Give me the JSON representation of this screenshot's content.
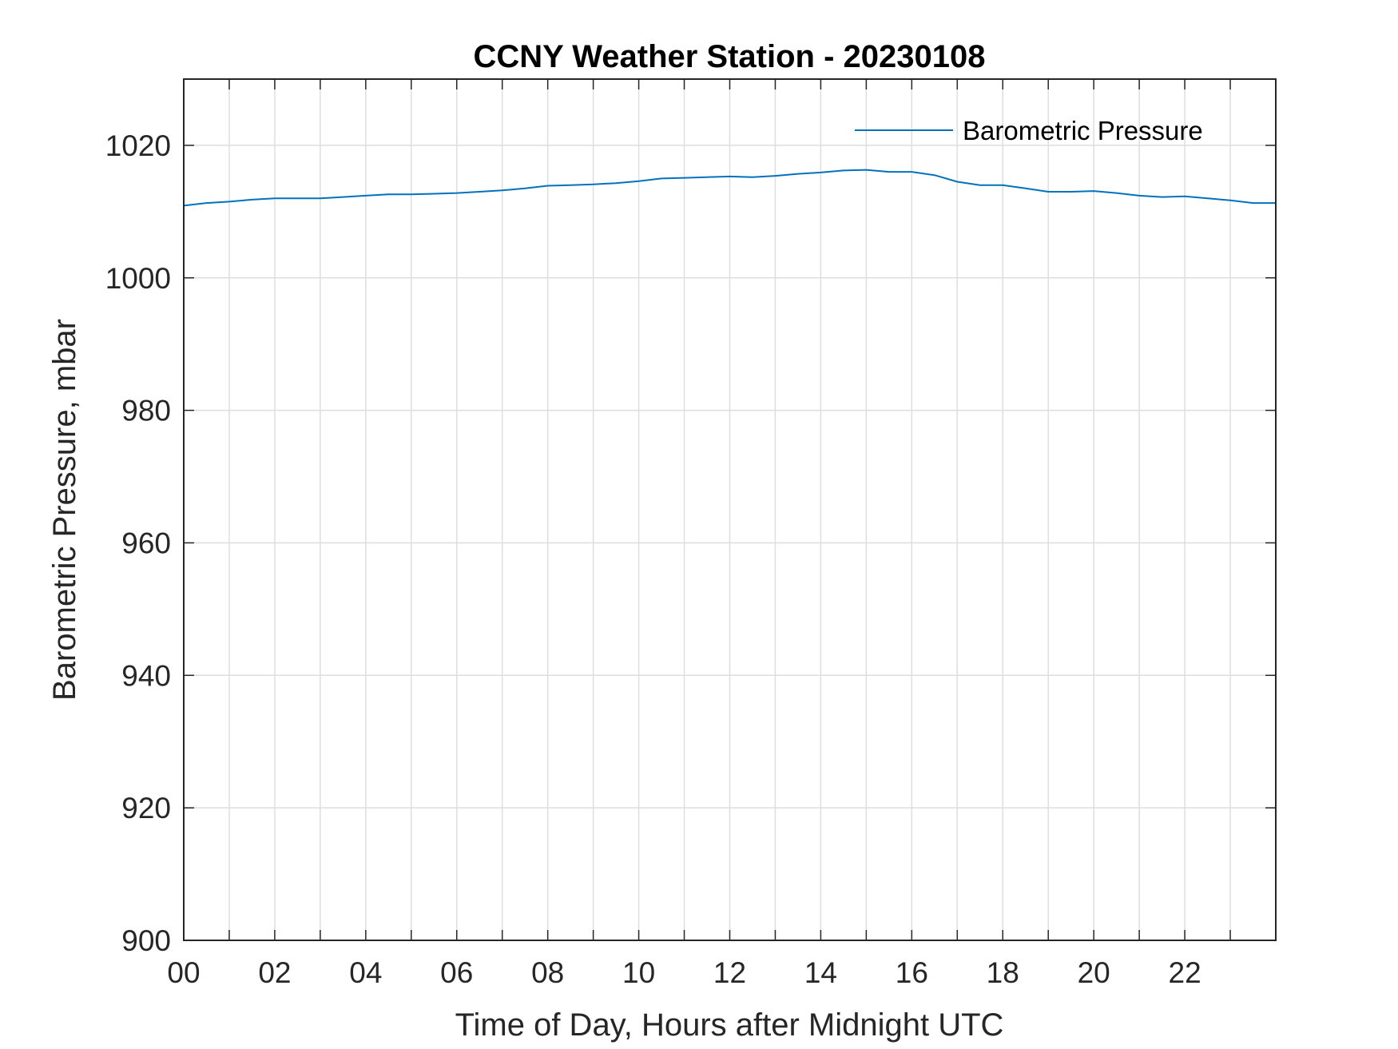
{
  "chart_data": {
    "type": "line",
    "title": "CCNY Weather Station - 20230108",
    "xlabel": "Time of Day, Hours after Midnight UTC",
    "ylabel": "Barometric Pressure, mbar",
    "xlim": [
      0,
      24
    ],
    "ylim": [
      900,
      1030
    ],
    "x_ticks": [
      0,
      2,
      4,
      6,
      8,
      10,
      12,
      14,
      16,
      18,
      20,
      22
    ],
    "x_tick_labels": [
      "00",
      "02",
      "04",
      "06",
      "08",
      "10",
      "12",
      "14",
      "16",
      "18",
      "20",
      "22"
    ],
    "y_ticks": [
      900,
      920,
      940,
      960,
      980,
      1000,
      1020
    ],
    "y_tick_labels": [
      "900",
      "920",
      "940",
      "960",
      "980",
      "1000",
      "1020"
    ],
    "grid": true,
    "legend_position": "top-right",
    "series": [
      {
        "name": "Barometric Pressure",
        "color": "#0072BD",
        "x": [
          0,
          0.5,
          1,
          1.5,
          2,
          2.5,
          3,
          3.5,
          4,
          4.5,
          5,
          5.5,
          6,
          6.5,
          7,
          7.5,
          8,
          8.5,
          9,
          9.5,
          10,
          10.5,
          11,
          11.5,
          12,
          12.5,
          13,
          13.5,
          14,
          14.5,
          15,
          15.5,
          16,
          16.5,
          17,
          17.5,
          18,
          18.5,
          19,
          19.5,
          20,
          20.5,
          21,
          21.5,
          22,
          22.5,
          23,
          23.5,
          24
        ],
        "y": [
          1010.9,
          1011.3,
          1011.5,
          1011.8,
          1012.0,
          1012.0,
          1012.0,
          1012.2,
          1012.4,
          1012.6,
          1012.6,
          1012.7,
          1012.8,
          1013.0,
          1013.2,
          1013.5,
          1013.9,
          1014.0,
          1014.1,
          1014.3,
          1014.6,
          1015.0,
          1015.1,
          1015.2,
          1015.3,
          1015.2,
          1015.4,
          1015.7,
          1015.9,
          1016.2,
          1016.3,
          1016.0,
          1016.0,
          1015.5,
          1014.5,
          1014.0,
          1014.0,
          1013.5,
          1013.0,
          1013.0,
          1013.1,
          1012.8,
          1012.4,
          1012.2,
          1012.3,
          1012.0,
          1011.7,
          1011.3,
          1011.3
        ]
      }
    ]
  }
}
